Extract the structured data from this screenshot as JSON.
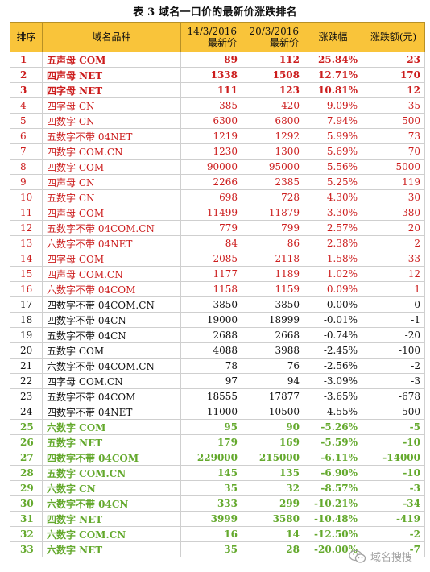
{
  "title": "表 3  域名一口价的最新价涨跌排名",
  "headers": {
    "rank": "排序",
    "name": "域名品种",
    "old_price_line1": "14/3/2016",
    "old_price_line2": "最新价",
    "new_price_line1": "20/3/2016",
    "new_price_line2": "最新价",
    "change_pct": "涨跌幅",
    "change_amt": "涨跌额(元)"
  },
  "colors": {
    "header_bg": "#f9c43a",
    "up_red": "#cc1d1d",
    "down_green": "#64a92d",
    "neutral": "#111111"
  },
  "rows": [
    {
      "rank": "1",
      "name": "五声母 COM",
      "old": "89",
      "new": "112",
      "pct": "25.84%",
      "amt": "23",
      "style": "up-bold"
    },
    {
      "rank": "2",
      "name": "四声母 NET",
      "old": "1338",
      "new": "1508",
      "pct": "12.71%",
      "amt": "170",
      "style": "up-bold"
    },
    {
      "rank": "3",
      "name": "四字母 NET",
      "old": "111",
      "new": "123",
      "pct": "10.81%",
      "amt": "12",
      "style": "up-bold"
    },
    {
      "rank": "4",
      "name": "四字母 CN",
      "old": "385",
      "new": "420",
      "pct": "9.09%",
      "amt": "35",
      "style": "up"
    },
    {
      "rank": "5",
      "name": "四数字 CN",
      "old": "6300",
      "new": "6800",
      "pct": "7.94%",
      "amt": "500",
      "style": "up"
    },
    {
      "rank": "6",
      "name": "五数字不带 04NET",
      "old": "1219",
      "new": "1292",
      "pct": "5.99%",
      "amt": "73",
      "style": "up"
    },
    {
      "rank": "7",
      "name": "四数字 COM.CN",
      "old": "1230",
      "new": "1300",
      "pct": "5.69%",
      "amt": "70",
      "style": "up"
    },
    {
      "rank": "8",
      "name": "四数字 COM",
      "old": "90000",
      "new": "95000",
      "pct": "5.56%",
      "amt": "5000",
      "style": "up"
    },
    {
      "rank": "9",
      "name": "四声母 CN",
      "old": "2266",
      "new": "2385",
      "pct": "5.25%",
      "amt": "119",
      "style": "up"
    },
    {
      "rank": "10",
      "name": "五数字 CN",
      "old": "698",
      "new": "728",
      "pct": "4.30%",
      "amt": "30",
      "style": "up"
    },
    {
      "rank": "11",
      "name": "四声母 COM",
      "old": "11499",
      "new": "11879",
      "pct": "3.30%",
      "amt": "380",
      "style": "up"
    },
    {
      "rank": "12",
      "name": "五数字不带 04COM.CN",
      "old": "779",
      "new": "799",
      "pct": "2.57%",
      "amt": "20",
      "style": "up"
    },
    {
      "rank": "13",
      "name": "六数字不带 04NET",
      "old": "84",
      "new": "86",
      "pct": "2.38%",
      "amt": "2",
      "style": "up"
    },
    {
      "rank": "14",
      "name": "四字母 COM",
      "old": "2085",
      "new": "2118",
      "pct": "1.58%",
      "amt": "33",
      "style": "up"
    },
    {
      "rank": "15",
      "name": "四声母 COM.CN",
      "old": "1177",
      "new": "1189",
      "pct": "1.02%",
      "amt": "12",
      "style": "up"
    },
    {
      "rank": "16",
      "name": "六数字不带 04COM",
      "old": "1158",
      "new": "1159",
      "pct": "0.09%",
      "amt": "1",
      "style": "up"
    },
    {
      "rank": "17",
      "name": "四数字不带 04COM.CN",
      "old": "3850",
      "new": "3850",
      "pct": "0.00%",
      "amt": "0",
      "style": "down"
    },
    {
      "rank": "18",
      "name": "四数字不带 04CN",
      "old": "19000",
      "new": "18999",
      "pct": "-0.01%",
      "amt": "-1",
      "style": "down"
    },
    {
      "rank": "19",
      "name": "五数字不带 04CN",
      "old": "2688",
      "new": "2668",
      "pct": "-0.74%",
      "amt": "-20",
      "style": "down"
    },
    {
      "rank": "20",
      "name": "五数字 COM",
      "old": "4088",
      "new": "3988",
      "pct": "-2.45%",
      "amt": "-100",
      "style": "down"
    },
    {
      "rank": "21",
      "name": "六数字不带 04COM.CN",
      "old": "78",
      "new": "76",
      "pct": "-2.56%",
      "amt": "-2",
      "style": "down"
    },
    {
      "rank": "22",
      "name": "四字母 COM.CN",
      "old": "97",
      "new": "94",
      "pct": "-3.09%",
      "amt": "-3",
      "style": "down"
    },
    {
      "rank": "23",
      "name": "五数字不带 04COM",
      "old": "18555",
      "new": "17877",
      "pct": "-3.65%",
      "amt": "-678",
      "style": "down"
    },
    {
      "rank": "24",
      "name": "四数字不带 04NET",
      "old": "11000",
      "new": "10500",
      "pct": "-4.55%",
      "amt": "-500",
      "style": "down"
    },
    {
      "rank": "25",
      "name": "六数字 COM",
      "old": "95",
      "new": "90",
      "pct": "-5.26%",
      "amt": "-5",
      "style": "down-green"
    },
    {
      "rank": "26",
      "name": "五数字 NET",
      "old": "179",
      "new": "169",
      "pct": "-5.59%",
      "amt": "-10",
      "style": "down-green"
    },
    {
      "rank": "27",
      "name": "四数字不带 04COM",
      "old": "229000",
      "new": "215000",
      "pct": "-6.11%",
      "amt": "-14000",
      "style": "down-green"
    },
    {
      "rank": "28",
      "name": "五数字 COM.CN",
      "old": "145",
      "new": "135",
      "pct": "-6.90%",
      "amt": "-10",
      "style": "down-green"
    },
    {
      "rank": "29",
      "name": "六数字 CN",
      "old": "35",
      "new": "32",
      "pct": "-8.57%",
      "amt": "-3",
      "style": "down-green"
    },
    {
      "rank": "30",
      "name": "六数字不带 04CN",
      "old": "333",
      "new": "299",
      "pct": "-10.21%",
      "amt": "-34",
      "style": "down-green"
    },
    {
      "rank": "31",
      "name": "四数字 NET",
      "old": "3999",
      "new": "3580",
      "pct": "-10.48%",
      "amt": "-419",
      "style": "down-green"
    },
    {
      "rank": "32",
      "name": "六数字 COM.CN",
      "old": "16",
      "new": "14",
      "pct": "-12.50%",
      "amt": "-2",
      "style": "down-green"
    },
    {
      "rank": "33",
      "name": "六数字 NET",
      "old": "35",
      "new": "28",
      "pct": "-20.00%",
      "amt": "-7",
      "style": "down-green"
    }
  ],
  "watermark": {
    "text": "域名搜搜",
    "icon": "wechat-icon"
  }
}
